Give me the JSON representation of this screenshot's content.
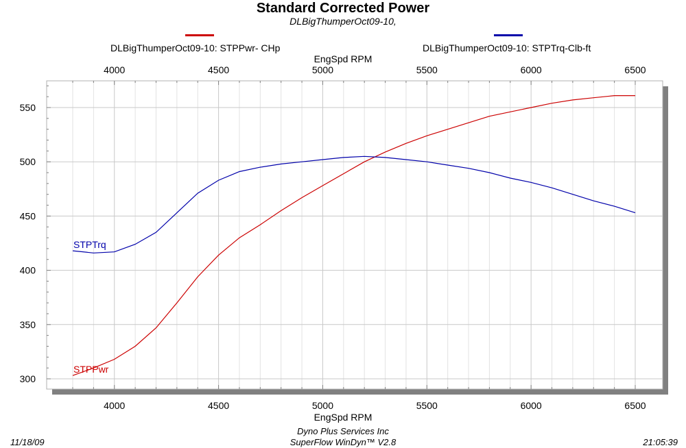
{
  "header": {
    "title": "Standard Corrected Power",
    "subtitle": "DLBigThumperOct09-10,"
  },
  "legend": [
    {
      "label": "DLBigThumperOct09-10: STPPwr- CHp",
      "color": "#cc0000"
    },
    {
      "label": "DLBigThumperOct09-10: STPTrq-Clb-ft",
      "color": "#0000aa"
    }
  ],
  "footer": {
    "date": "11/18/09",
    "company": "Dyno Plus Services Inc",
    "software": "SuperFlow WinDyn™ V2.8",
    "time": "21:05:39"
  },
  "chart_data": {
    "type": "line",
    "xlabel": "EngSpd  RPM",
    "xlabel_top": "EngSpd  RPM",
    "ylabel": "",
    "xlim": [
      3800,
      6500
    ],
    "ylim": [
      295,
      575
    ],
    "x_ticks": [
      4000,
      4500,
      5000,
      5500,
      6000,
      6500
    ],
    "y_ticks": [
      300,
      350,
      400,
      450,
      500,
      550
    ],
    "grid": true,
    "legend_position": "top",
    "series": [
      {
        "name": "DLBigThumperOct09-10: STPPwr- CHp",
        "label": "STPPwr",
        "color": "#cc0000",
        "x": [
          3800,
          3900,
          4000,
          4100,
          4200,
          4300,
          4400,
          4500,
          4600,
          4700,
          4800,
          4900,
          5000,
          5100,
          5200,
          5300,
          5400,
          5500,
          5600,
          5700,
          5800,
          5900,
          6000,
          6100,
          6200,
          6300,
          6400,
          6500
        ],
        "values": [
          303,
          310,
          318,
          330,
          347,
          370,
          394,
          414,
          430,
          442,
          455,
          467,
          478,
          489,
          500,
          509,
          517,
          524,
          530,
          536,
          542,
          546,
          550,
          554,
          557,
          559,
          561,
          561
        ]
      },
      {
        "name": "DLBigThumperOct09-10: STPTrq-Clb-ft",
        "label": "STPTrq",
        "color": "#0000aa",
        "x": [
          3800,
          3900,
          4000,
          4100,
          4200,
          4300,
          4400,
          4500,
          4600,
          4700,
          4800,
          4900,
          5000,
          5100,
          5200,
          5300,
          5400,
          5500,
          5600,
          5700,
          5800,
          5900,
          6000,
          6100,
          6200,
          6300,
          6400,
          6500
        ],
        "values": [
          418,
          416,
          417,
          424,
          435,
          453,
          471,
          483,
          491,
          495,
          498,
          500,
          502,
          504,
          505,
          504,
          502,
          500,
          497,
          494,
          490,
          485,
          481,
          476,
          470,
          464,
          459,
          453
        ]
      }
    ]
  }
}
